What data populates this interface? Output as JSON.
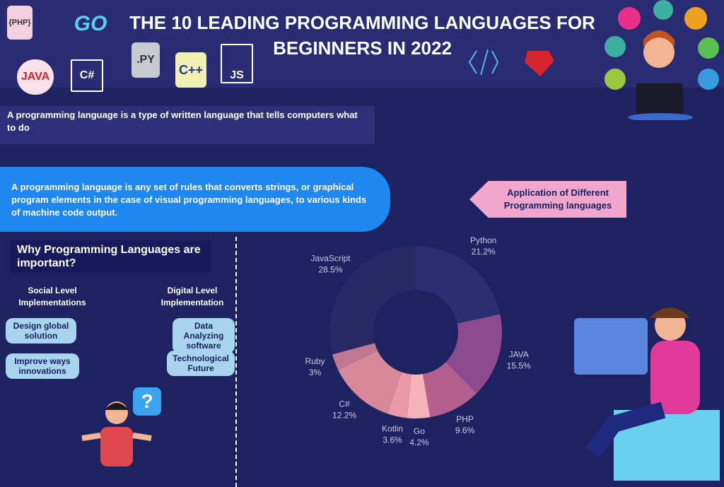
{
  "header": {
    "title": "THE 10 LEADING PROGRAMMING LANGUAGES FOR BEGINNERS IN 2022",
    "logos": [
      "{PHP}",
      "GO",
      "JAVA",
      "C#",
      ".PY",
      "C++",
      "JS"
    ]
  },
  "intro": [
    "A programming language is a type of written language that tells computers what to do",
    "A programming language is any set of rules that converts strings, or graphical program elements in the case of visual programming languages, to various kinds of machine code output."
  ],
  "why": {
    "title": "Why Programming Languages are important?",
    "social": {
      "title": "Social Level Implementations",
      "items": [
        "Design global solution",
        "Improve ways innovations"
      ]
    },
    "digital": {
      "title": "Digital Level Implementation",
      "items": [
        "Data Analyzing software",
        "Technological Future"
      ]
    },
    "question": "?"
  },
  "chart_data": {
    "type": "pie",
    "title": "Application of Different Programming languages",
    "categories": [
      "Python",
      "JAVA",
      "PHP",
      "Go",
      "Kotlin",
      "C#",
      "Ruby",
      "JavaScript"
    ],
    "values": [
      21.2,
      15.5,
      9.6,
      4.2,
      3.6,
      12.2,
      3,
      28.5
    ],
    "value_labels": [
      "21.2%",
      "15.5%",
      "9.6%",
      "4.2%",
      "3.6%",
      "12.2%",
      "3%",
      "28.5%"
    ],
    "colors": [
      "#2b2e72",
      "#8c4b8e",
      "#b4608f",
      "#f6b2b8",
      "#e99aa8",
      "#d88999",
      "#c17791",
      "#262964"
    ]
  }
}
